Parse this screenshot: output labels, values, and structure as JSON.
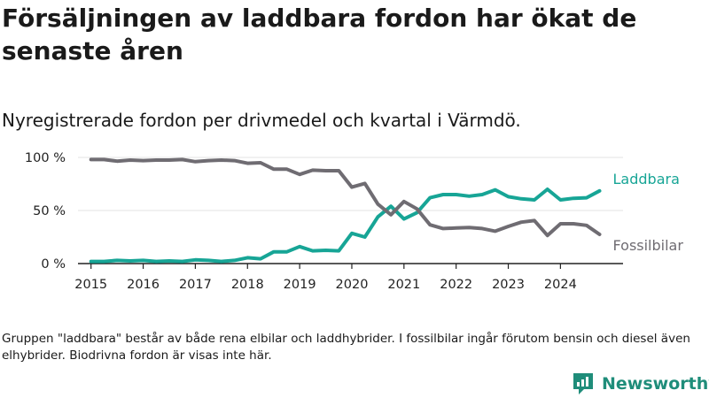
{
  "title": "Försäljningen av laddbara fordon har ökat de senaste åren",
  "subtitle": "Nyregistrerade fordon per drivmedel och kvartal i Värmdö.",
  "footnote": "Gruppen \"laddbara\" består av både rena elbilar och laddhybrider. I fossilbilar ingår förutom bensin och diesel även elhybrider. Biodrivna fordon är visas inte här.",
  "brand": "Newsworthy",
  "colors": {
    "laddbara": "#17a596",
    "fossil": "#6f6c72",
    "axis": "#222222",
    "grid": "#e3e3e3",
    "brand": "#1f8d7a"
  },
  "chart_data": {
    "type": "line",
    "x_start": 2015,
    "x_step": 0.25,
    "x_ticks": [
      2015,
      2016,
      2017,
      2018,
      2019,
      2020,
      2021,
      2022,
      2023,
      2024
    ],
    "x_tick_labels": [
      "2015",
      "2016",
      "2017",
      "2018",
      "2019",
      "2020",
      "2021",
      "2022",
      "2023",
      "2024"
    ],
    "y_ticks": [
      0,
      50,
      100
    ],
    "y_tick_labels": [
      "0 %",
      "50 %",
      "100 %"
    ],
    "ylim": [
      0,
      100
    ],
    "xlim": [
      2014.75,
      2025.2
    ],
    "grid": true,
    "series": [
      {
        "name": "Laddbara",
        "color_key": "laddbara",
        "values": [
          2,
          2,
          3,
          2.5,
          3,
          2,
          2.5,
          2,
          3.5,
          3,
          2,
          3,
          5.5,
          4.5,
          11,
          11,
          16,
          12,
          12.5,
          12,
          28.5,
          25,
          44,
          54,
          42,
          48,
          62,
          65,
          65,
          63.5,
          65,
          69.5,
          63,
          61,
          60,
          70,
          60,
          61.5,
          62,
          68.5
        ]
      },
      {
        "name": "Fossilbilar",
        "color_key": "fossil",
        "values": [
          98,
          98,
          96.5,
          97.5,
          97,
          97.5,
          97.5,
          98,
          96,
          97,
          97.5,
          97,
          94.5,
          95,
          89,
          89,
          84,
          88,
          87.5,
          87.5,
          72,
          75.5,
          56,
          46,
          58.5,
          51.5,
          36.5,
          33,
          33.5,
          34,
          33,
          30.5,
          35,
          39,
          40.5,
          26.5,
          37.5,
          37.5,
          36,
          27.5
        ]
      }
    ]
  }
}
